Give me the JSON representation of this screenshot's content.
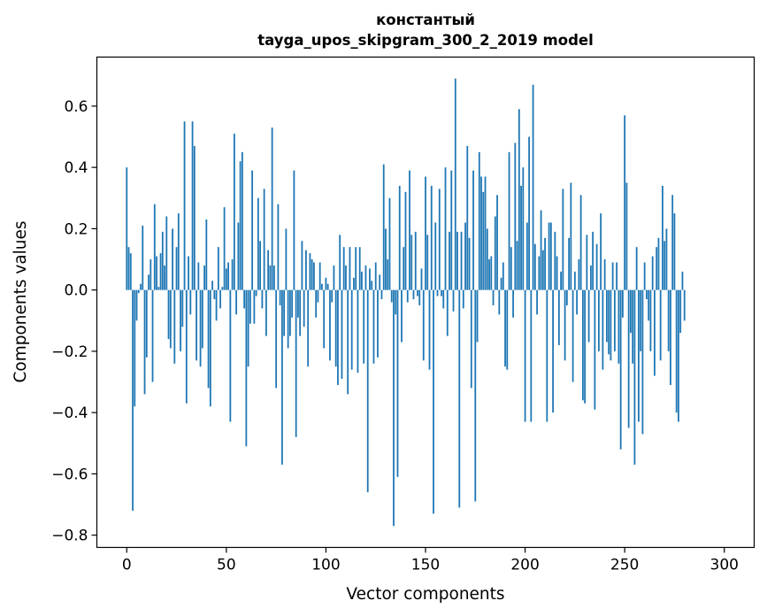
{
  "chart_data": {
    "type": "bar",
    "title_line1": "константый",
    "title_line2": "tayga_upos_skipgram_300_2_2019 model",
    "xlabel": "Vector components",
    "ylabel": "Components values",
    "xlim": [
      -15,
      315
    ],
    "ylim": [
      -0.84,
      0.76
    ],
    "xticks": [
      0,
      50,
      100,
      150,
      200,
      250,
      300
    ],
    "xtick_labels": [
      "0",
      "50",
      "100",
      "150",
      "200",
      "250",
      "300"
    ],
    "yticks": [
      0.6,
      0.4,
      0.2,
      0.0,
      -0.2,
      -0.4,
      -0.6,
      -0.8
    ],
    "ytick_labels": [
      "0.6",
      "0.4",
      "0.2",
      "0.0",
      "−0.2",
      "−0.4",
      "−0.6",
      "−0.8"
    ],
    "grid": false,
    "color": "#1f77b4",
    "x_start": 0,
    "values": [
      0.4,
      0.14,
      0.12,
      -0.72,
      -0.38,
      -0.1,
      -0.01,
      0.02,
      0.21,
      -0.34,
      -0.22,
      0.05,
      0.1,
      -0.3,
      0.28,
      0.11,
      0.01,
      0.12,
      0.19,
      0.08,
      0.24,
      -0.16,
      -0.19,
      0.2,
      -0.24,
      0.14,
      0.25,
      -0.2,
      -0.12,
      0.55,
      -0.37,
      0.11,
      -0.08,
      0.55,
      0.47,
      -0.23,
      0.09,
      -0.25,
      -0.19,
      0.08,
      0.23,
      -0.32,
      -0.38,
      0.03,
      -0.03,
      -0.1,
      0.14,
      -0.06,
      0.01,
      0.27,
      0.07,
      0.09,
      -0.43,
      0.1,
      0.51,
      -0.08,
      0.22,
      0.42,
      0.45,
      -0.06,
      -0.51,
      -0.25,
      -0.11,
      0.39,
      -0.11,
      -0.02,
      0.3,
      0.16,
      -0.06,
      0.33,
      -0.15,
      0.13,
      0.08,
      0.53,
      0.08,
      -0.32,
      0.28,
      -0.05,
      -0.57,
      -0.15,
      0.2,
      -0.19,
      -0.15,
      -0.09,
      0.39,
      -0.48,
      -0.09,
      -0.15,
      0.16,
      -0.12,
      0.13,
      -0.25,
      0.12,
      0.1,
      0.09,
      -0.09,
      -0.04,
      0.09,
      0.02,
      -0.19,
      0.04,
      0.02,
      -0.23,
      -0.04,
      0.08,
      -0.25,
      -0.31,
      0.18,
      -0.29,
      0.14,
      0.08,
      -0.34,
      0.14,
      -0.26,
      0.04,
      0.14,
      -0.27,
      0.14,
      0.06,
      -0.24,
      0.08,
      -0.66,
      0.07,
      0.03,
      -0.24,
      0.09,
      -0.22,
      0.05,
      -0.03,
      0.41,
      0.2,
      0.1,
      0.3,
      -0.04,
      -0.77,
      -0.08,
      -0.61,
      0.34,
      -0.17,
      0.14,
      0.32,
      -0.04,
      0.39,
      0.18,
      -0.03,
      0.19,
      -0.02,
      -0.05,
      0.07,
      -0.23,
      0.37,
      0.18,
      -0.26,
      0.34,
      -0.73,
      0.22,
      -0.02,
      0.33,
      -0.02,
      -0.06,
      0.4,
      -0.15,
      0.19,
      0.39,
      -0.07,
      0.69,
      0.19,
      -0.71,
      0.19,
      -0.06,
      0.22,
      0.47,
      0.17,
      -0.32,
      0.39,
      -0.69,
      -0.17,
      0.45,
      0.37,
      0.32,
      0.37,
      0.2,
      0.1,
      0.11,
      -0.05,
      0.24,
      0.31,
      -0.08,
      0.04,
      0.09,
      -0.25,
      -0.26,
      0.45,
      0.14,
      -0.09,
      0.48,
      0.16,
      0.59,
      0.34,
      0.4,
      -0.43,
      0.22,
      0.5,
      -0.43,
      0.67,
      0.15,
      -0.08,
      0.11,
      0.26,
      0.13,
      0.17,
      -0.43,
      0.22,
      0.22,
      -0.4,
      0.19,
      0.11,
      -0.18,
      0.06,
      0.33,
      -0.23,
      -0.05,
      0.17,
      0.35,
      -0.3,
      0.06,
      -0.08,
      0.1,
      0.31,
      -0.36,
      -0.37,
      0.18,
      -0.17,
      0.08,
      0.19,
      -0.39,
      0.15,
      -0.2,
      0.25,
      -0.26,
      0.1,
      -0.17,
      -0.21,
      -0.23,
      0.09,
      -0.2,
      0.09,
      -0.24,
      -0.52,
      -0.09,
      0.57,
      0.35,
      -0.45,
      -0.14,
      -0.24,
      -0.57,
      0.14,
      -0.43,
      -0.2,
      -0.47,
      0.09,
      -0.03,
      -0.1,
      -0.2,
      0.11,
      -0.28,
      0.14,
      0.17,
      -0.23,
      0.34,
      0.16,
      0.2,
      -0.2,
      -0.31,
      0.31,
      0.25,
      -0.4,
      -0.43,
      -0.14,
      0.06,
      -0.1
    ]
  }
}
